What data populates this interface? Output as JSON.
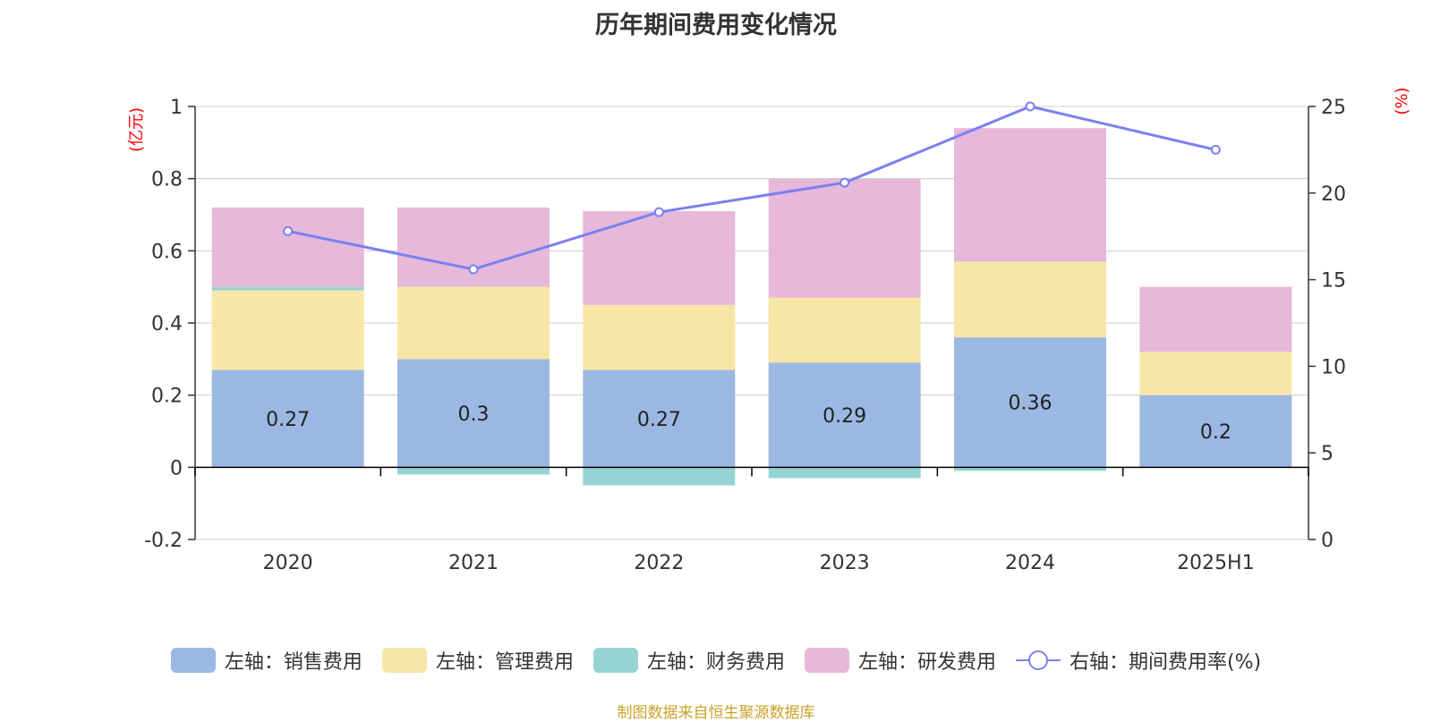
{
  "title": "历年期间费用变化情况",
  "source": "制图数据来自恒生聚源数据库",
  "colors": {
    "sales": "#9bb8e2",
    "admin": "#f8e6a6",
    "finance": "#96d4d4",
    "rd": "#e6b8da",
    "rate": "#7a80f0",
    "axis_unit": "#ff0000",
    "grid": "#cccccc",
    "text": "#333333"
  },
  "chart_data": {
    "type": "bar",
    "stacked": true,
    "title": "历年期间费用变化情况",
    "categories": [
      "2020",
      "2021",
      "2022",
      "2023",
      "2024",
      "2025H1"
    ],
    "left_axis": {
      "unit": "(亿元)",
      "ylim": [
        -0.2,
        1
      ],
      "ticks": [
        "-0.2",
        "0",
        "0.2",
        "0.4",
        "0.6",
        "0.8",
        "1"
      ],
      "tick_values": [
        -0.2,
        0,
        0.2,
        0.4,
        0.6,
        0.8,
        1
      ]
    },
    "right_axis": {
      "unit": "(%)",
      "ylim": [
        0,
        25
      ],
      "ticks": [
        "0",
        "5",
        "10",
        "15",
        "20",
        "25"
      ],
      "tick_values": [
        0,
        5,
        10,
        15,
        20,
        25
      ]
    },
    "series": [
      {
        "key": "sales",
        "name": "左轴：销售费用",
        "axis": "left",
        "type": "bar",
        "values": [
          0.27,
          0.3,
          0.27,
          0.29,
          0.36,
          0.2
        ],
        "labels": [
          "0.27",
          "0.3",
          "0.27",
          "0.29",
          "0.36",
          "0.2"
        ]
      },
      {
        "key": "admin",
        "name": "左轴：管理费用",
        "axis": "left",
        "type": "bar",
        "values": [
          0.22,
          0.2,
          0.18,
          0.18,
          0.21,
          0.12
        ]
      },
      {
        "key": "finance",
        "name": "左轴：财务费用",
        "axis": "left",
        "type": "bar",
        "values": [
          0.01,
          -0.02,
          -0.05,
          -0.03,
          -0.01,
          0.0
        ]
      },
      {
        "key": "rd",
        "name": "左轴：研发费用",
        "axis": "left",
        "type": "bar",
        "values": [
          0.22,
          0.22,
          0.26,
          0.33,
          0.37,
          0.18
        ]
      },
      {
        "key": "rate",
        "name": "右轴：期间费用率(%)",
        "axis": "right",
        "type": "line",
        "values": [
          17.8,
          15.6,
          18.9,
          20.6,
          25.0,
          22.5
        ]
      }
    ]
  }
}
